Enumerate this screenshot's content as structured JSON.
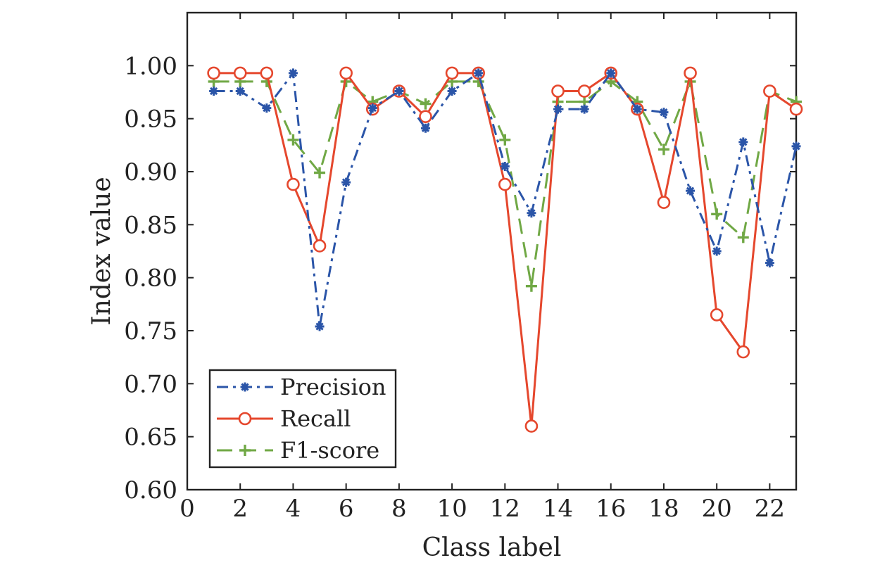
{
  "chart_data": {
    "type": "line",
    "xlabel": "Class label",
    "ylabel": "Index value",
    "xlim": [
      0,
      23
    ],
    "ylim": [
      0.6,
      1.05
    ],
    "xticks": [
      "0",
      "2",
      "4",
      "6",
      "8",
      "10",
      "12",
      "14",
      "16",
      "18",
      "20",
      "22"
    ],
    "yticks": [
      "0.60",
      "0.65",
      "0.70",
      "0.75",
      "0.80",
      "0.85",
      "0.90",
      "0.95",
      "1.00"
    ],
    "legend_position": "bottom-left",
    "x": [
      1,
      2,
      3,
      4,
      5,
      6,
      7,
      8,
      9,
      10,
      11,
      12,
      13,
      14,
      15,
      16,
      17,
      18,
      19,
      20,
      21,
      22,
      23
    ],
    "series": [
      {
        "name": "Precision",
        "color": "#2b55a8",
        "line_style": "dash-dot",
        "marker": "asterisk",
        "values": [
          0.976,
          0.976,
          0.96,
          0.993,
          0.754,
          0.89,
          0.96,
          0.976,
          0.941,
          0.976,
          0.993,
          0.905,
          0.861,
          0.959,
          0.959,
          0.993,
          0.959,
          0.956,
          0.882,
          0.825,
          0.928,
          0.814,
          0.924
        ]
      },
      {
        "name": "Recall",
        "color": "#e5472d",
        "line_style": "solid",
        "marker": "circle",
        "values": [
          0.993,
          0.993,
          0.993,
          0.888,
          0.83,
          0.993,
          0.959,
          0.976,
          0.952,
          0.993,
          0.993,
          0.888,
          0.66,
          0.976,
          0.976,
          0.993,
          0.959,
          0.871,
          0.993,
          0.765,
          0.73,
          0.976,
          0.959
        ]
      },
      {
        "name": "F1-score",
        "color": "#70a845",
        "line_style": "dashed",
        "marker": "plus",
        "values": [
          0.985,
          0.985,
          0.985,
          0.93,
          0.899,
          0.985,
          0.966,
          0.976,
          0.964,
          0.985,
          0.985,
          0.93,
          0.792,
          0.966,
          0.966,
          0.985,
          0.966,
          0.921,
          0.985,
          0.86,
          0.838,
          0.976,
          0.966
        ]
      }
    ]
  }
}
